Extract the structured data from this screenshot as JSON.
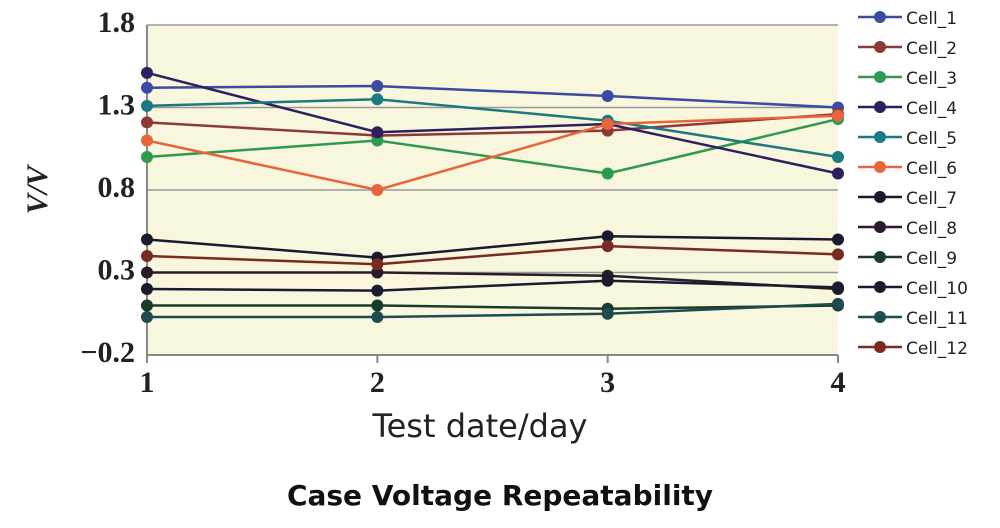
{
  "chart_data": {
    "type": "line",
    "title": "Case Voltage Repeatability",
    "x_label": "Test date/day",
    "y_label": "V/V",
    "x": [
      1,
      2,
      3,
      4
    ],
    "xlim": [
      1,
      4
    ],
    "xticks": [
      1,
      2,
      3,
      4
    ],
    "ylim": [
      -0.2,
      1.8
    ],
    "yticks": [
      {
        "value": -0.2,
        "label": "−0.2"
      },
      0.3,
      0.8,
      1.3,
      1.8
    ],
    "grid": true,
    "legend": "right",
    "series": [
      {
        "name": "Cell_1",
        "color": "#3b4ba0",
        "values": [
          1.42,
          1.43,
          1.37,
          1.3
        ]
      },
      {
        "name": "Cell_2",
        "color": "#8b3a3a",
        "values": [
          1.21,
          1.13,
          1.16,
          1.26
        ]
      },
      {
        "name": "Cell_3",
        "color": "#2e9a4e",
        "values": [
          1.0,
          1.1,
          0.9,
          1.23
        ]
      },
      {
        "name": "Cell_4",
        "color": "#2e2060",
        "values": [
          1.51,
          1.15,
          1.2,
          0.9
        ]
      },
      {
        "name": "Cell_5",
        "color": "#1a7a80",
        "values": [
          1.31,
          1.35,
          1.22,
          1.0
        ]
      },
      {
        "name": "Cell_6",
        "color": "#e8643a",
        "values": [
          1.1,
          0.8,
          1.2,
          1.25
        ]
      },
      {
        "name": "Cell_7",
        "color": "#1a1a2e",
        "values": [
          0.5,
          0.39,
          0.52,
          0.5
        ]
      },
      {
        "name": "Cell_8",
        "color": "#2a1a2a",
        "values": [
          0.3,
          0.3,
          0.28,
          0.2
        ]
      },
      {
        "name": "Cell_9",
        "color": "#1a3a2a",
        "values": [
          0.1,
          0.1,
          0.08,
          0.1
        ]
      },
      {
        "name": "Cell_10",
        "color": "#1a1a30",
        "values": [
          0.2,
          0.19,
          0.25,
          0.21
        ]
      },
      {
        "name": "Cell_11",
        "color": "#1e4a50",
        "values": [
          0.03,
          0.03,
          0.05,
          0.11
        ]
      },
      {
        "name": "Cell_12",
        "color": "#7a2a20",
        "values": [
          0.4,
          0.35,
          0.46,
          0.41
        ]
      }
    ]
  }
}
